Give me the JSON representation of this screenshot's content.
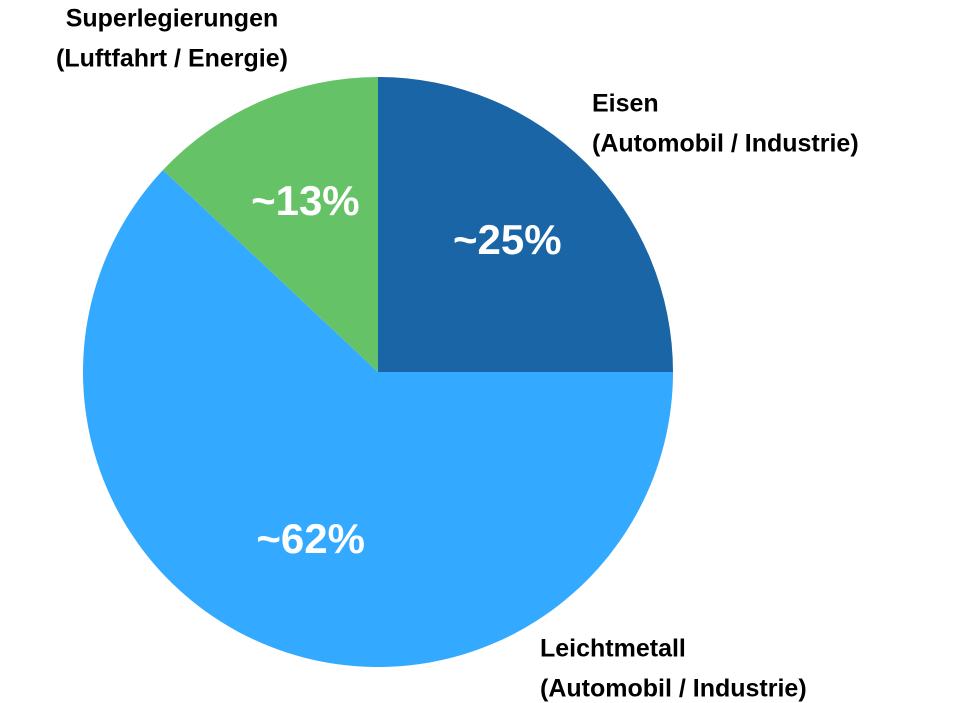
{
  "chart_data": {
    "type": "pie",
    "categories": [
      [
        "Eisen",
        "(Automobil / Industrie)"
      ],
      [
        "Leichtmetall",
        "(Automobil / Industrie)"
      ],
      [
        "Superlegierungen",
        "(Luftfahrt / Energie)"
      ]
    ],
    "values": [
      25,
      62,
      13
    ],
    "value_labels": [
      "~25%",
      "~62%",
      "~13%"
    ],
    "colors": [
      "#1a65a5",
      "#33aaff",
      "#66c266"
    ]
  }
}
